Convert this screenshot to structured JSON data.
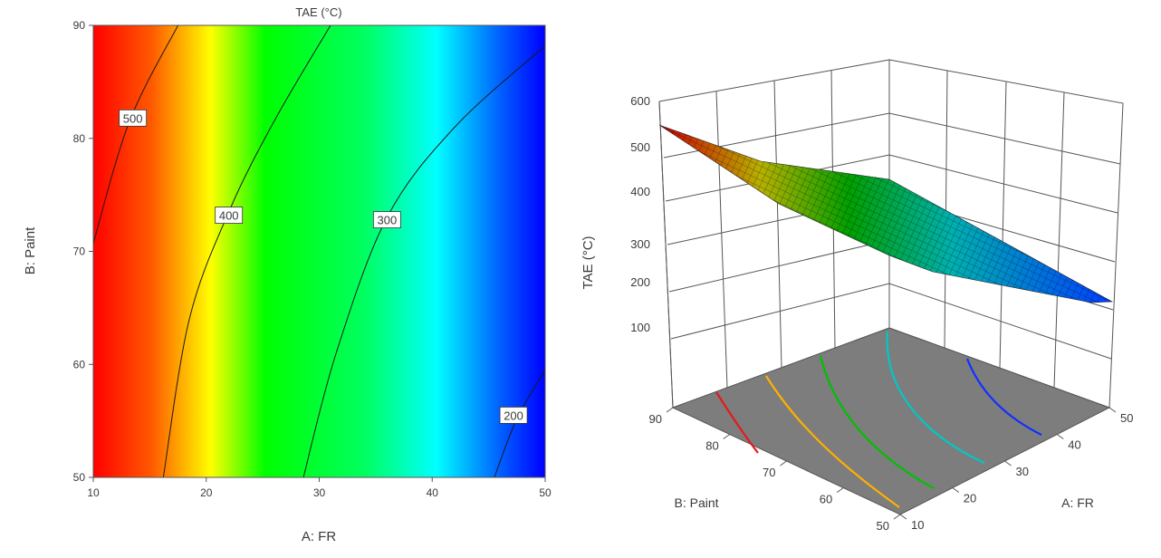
{
  "chart_data": [
    {
      "type": "heatmap",
      "subtype": "contour",
      "title": "TAE (°C)",
      "xlabel": "A: FR",
      "ylabel": "B: Paint",
      "xlim": [
        10,
        50
      ],
      "ylim": [
        50,
        90
      ],
      "xticks": [
        "10",
        "20",
        "30",
        "40",
        "50"
      ],
      "yticks": [
        "50",
        "60",
        "70",
        "80",
        "90"
      ],
      "colormap": [
        "#0000ff",
        "#00ffff",
        "#00ff00",
        "#ffff00",
        "#ff0000"
      ],
      "contour_levels": [
        {
          "value": 500,
          "label": "500",
          "points": [
            [
              10,
              70.7
            ],
            [
              13.2,
              81.5
            ],
            [
              17.5,
              90
            ]
          ]
        },
        {
          "value": 400,
          "label": "400",
          "points": [
            [
              16.2,
              50
            ],
            [
              18.5,
              64
            ],
            [
              22,
              73.5
            ],
            [
              26,
              81.5
            ],
            [
              31,
              90
            ]
          ]
        },
        {
          "value": 300,
          "label": "300",
          "points": [
            [
              28.6,
              50
            ],
            [
              31.5,
              61
            ],
            [
              36,
              73
            ],
            [
              42,
              81
            ],
            [
              50,
              88.2
            ]
          ]
        },
        {
          "value": 200,
          "label": "200",
          "points": [
            [
              45.5,
              50
            ],
            [
              47.5,
              55.2
            ],
            [
              50,
              59.5
            ]
          ]
        }
      ],
      "grid": false,
      "legend": "none"
    },
    {
      "type": "surface",
      "zlabel": "TAE (°C)",
      "xlabel": "A: FR",
      "ylabel": "B: Paint",
      "xlim": [
        10,
        50
      ],
      "ylim": [
        50,
        90
      ],
      "zlim": [
        100,
        600
      ],
      "xticks": [
        "10",
        "20",
        "30",
        "40",
        "50"
      ],
      "yticks": [
        "50",
        "60",
        "70",
        "80",
        "90"
      ],
      "zticks": [
        "100",
        "200",
        "300",
        "400",
        "500",
        "600"
      ],
      "corner_values": [
        {
          "FR": 10,
          "Paint": 90,
          "TAE": 555
        },
        {
          "FR": 10,
          "Paint": 50,
          "TAE": 455
        },
        {
          "FR": 50,
          "Paint": 90,
          "TAE": 230
        },
        {
          "FR": 50,
          "Paint": 50,
          "TAE": 160
        }
      ],
      "floor_contours": [
        "#e31a1c",
        "#ffb000",
        "#00c000",
        "#00c8c8",
        "#1030ff"
      ],
      "colormap": [
        "#0000ff",
        "#00ffff",
        "#00ff00",
        "#ffff00",
        "#ff0000"
      ],
      "grid": true,
      "legend": "none"
    }
  ]
}
